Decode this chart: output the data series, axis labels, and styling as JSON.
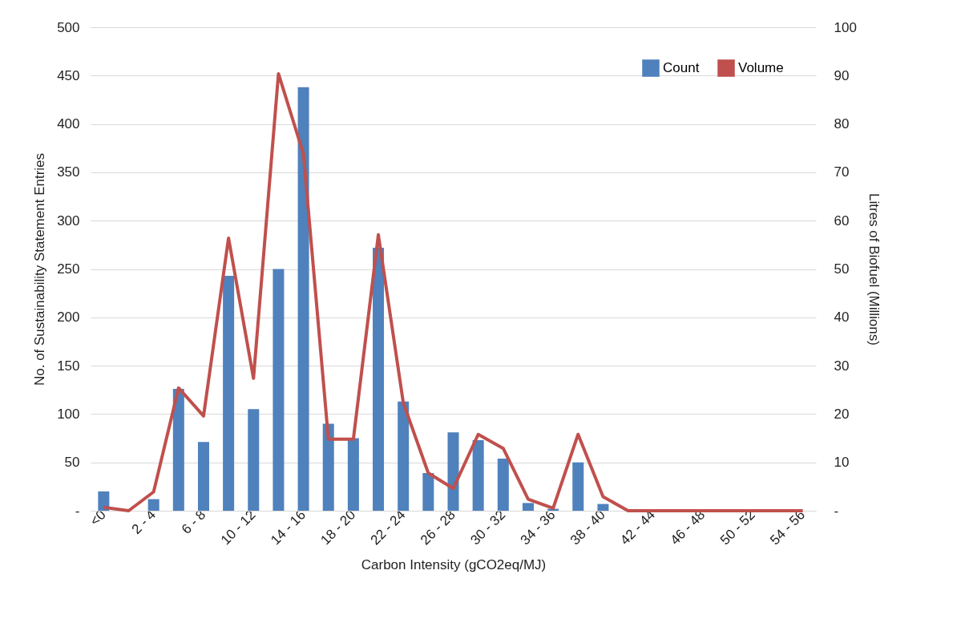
{
  "chart_data": {
    "type": "bar",
    "categories": [
      "<0",
      null,
      "2 - 4",
      null,
      "6 - 8",
      null,
      "10 - 12",
      null,
      "14 - 16",
      null,
      "18 - 20",
      null,
      "22 - 24",
      null,
      "26 - 28",
      null,
      "30 - 32",
      null,
      "34 - 36",
      null,
      "38 - 40",
      null,
      "42 - 44",
      null,
      "46 - 48",
      null,
      "50 - 52",
      null,
      "54 - 56"
    ],
    "series": [
      {
        "name": "Count",
        "color": "#4f81bd",
        "values": [
          20,
          0,
          12,
          126,
          71,
          243,
          105,
          250,
          438,
          90,
          75,
          272,
          113,
          39,
          81,
          73,
          54,
          8,
          2,
          50,
          7,
          0,
          0,
          0,
          0,
          0,
          0,
          0,
          0
        ]
      },
      {
        "name": "Volume",
        "type": "line",
        "axis": "y2",
        "color": "#c0504d",
        "values": [
          0.7,
          0,
          3.9,
          25.4,
          19.6,
          56.4,
          27.4,
          90.4,
          73.8,
          14.8,
          14.8,
          57.1,
          22.3,
          7.8,
          4.6,
          15.8,
          12.9,
          2.4,
          0.5,
          15.8,
          2.9,
          0,
          0,
          0,
          0,
          0,
          0,
          0,
          0
        ]
      }
    ],
    "xlabel": "Carbon Intensity (gCO2eq/MJ)",
    "ylabel": "No. of Sustainability Statement Entries",
    "y2label": "Litres of Biofuel (Millions)",
    "ylim": [
      0,
      500
    ],
    "yticks": [
      {
        "value": 0,
        "label": "-"
      },
      50,
      100,
      150,
      200,
      250,
      300,
      350,
      400,
      450,
      500
    ],
    "y2lim": [
      0,
      100
    ],
    "y2ticks": [
      {
        "value": 0,
        "label": "-"
      },
      10,
      20,
      30,
      40,
      50,
      60,
      70,
      80,
      90,
      100
    ],
    "grid": "y",
    "legend": "top right",
    "marker": "none"
  }
}
